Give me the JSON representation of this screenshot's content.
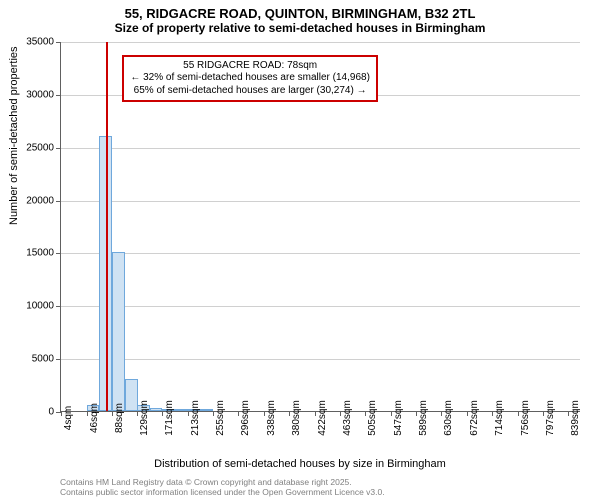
{
  "title": "55, RIDGACRE ROAD, QUINTON, BIRMINGHAM, B32 2TL",
  "subtitle": "Size of property relative to semi-detached houses in Birmingham",
  "y_axis_label": "Number of semi-detached properties",
  "x_axis_label": "Distribution of semi-detached houses by size in Birmingham",
  "attribution_line1": "Contains HM Land Registry data © Crown copyright and database right 2025.",
  "attribution_line2": "Contains public sector information licensed under the Open Government Licence v3.0.",
  "chart": {
    "type": "histogram",
    "background_color": "#ffffff",
    "grid_color": "#d0d0d0",
    "axis_color": "#606060",
    "bar_fill": "#cfe2f3",
    "bar_stroke": "#6fa8dc",
    "marker_color": "#cc0000",
    "ylim": [
      0,
      35000
    ],
    "ytick_step": 5000,
    "y_ticks": [
      0,
      5000,
      10000,
      15000,
      20000,
      25000,
      30000,
      35000
    ],
    "xlim_sqm": [
      4,
      860
    ],
    "x_ticks": [
      {
        "v": 4,
        "label": "4sqm"
      },
      {
        "v": 46,
        "label": "46sqm"
      },
      {
        "v": 88,
        "label": "88sqm"
      },
      {
        "v": 129,
        "label": "129sqm"
      },
      {
        "v": 171,
        "label": "171sqm"
      },
      {
        "v": 213,
        "label": "213sqm"
      },
      {
        "v": 255,
        "label": "255sqm"
      },
      {
        "v": 296,
        "label": "296sqm"
      },
      {
        "v": 338,
        "label": "338sqm"
      },
      {
        "v": 380,
        "label": "380sqm"
      },
      {
        "v": 422,
        "label": "422sqm"
      },
      {
        "v": 463,
        "label": "463sqm"
      },
      {
        "v": 505,
        "label": "505sqm"
      },
      {
        "v": 547,
        "label": "547sqm"
      },
      {
        "v": 589,
        "label": "589sqm"
      },
      {
        "v": 630,
        "label": "630sqm"
      },
      {
        "v": 672,
        "label": "672sqm"
      },
      {
        "v": 714,
        "label": "714sqm"
      },
      {
        "v": 756,
        "label": "756sqm"
      },
      {
        "v": 797,
        "label": "797sqm"
      },
      {
        "v": 839,
        "label": "839sqm"
      }
    ],
    "bar_width_sqm": 21,
    "bars": [
      {
        "x_sqm": 46,
        "count": 600
      },
      {
        "x_sqm": 67,
        "count": 26000
      },
      {
        "x_sqm": 88,
        "count": 15000
      },
      {
        "x_sqm": 109,
        "count": 3000
      },
      {
        "x_sqm": 129,
        "count": 600
      },
      {
        "x_sqm": 150,
        "count": 300
      },
      {
        "x_sqm": 171,
        "count": 200
      },
      {
        "x_sqm": 192,
        "count": 100
      },
      {
        "x_sqm": 213,
        "count": 100
      },
      {
        "x_sqm": 234,
        "count": 60
      }
    ],
    "marker_sqm": 78,
    "callout": {
      "line1": "55 RIDGACRE ROAD: 78sqm",
      "line2": "← 32% of semi-detached houses are smaller (14,968)",
      "line3": "65% of semi-detached houses are larger (30,274) →",
      "left_sqm": 105,
      "top_count": 33800
    },
    "title_fontsize": 13,
    "subtitle_fontsize": 12,
    "axis_label_fontsize": 11,
    "tick_fontsize": 10,
    "callout_fontsize": 10,
    "attribution_fontsize": 8.5,
    "attribution_color": "#808080"
  }
}
